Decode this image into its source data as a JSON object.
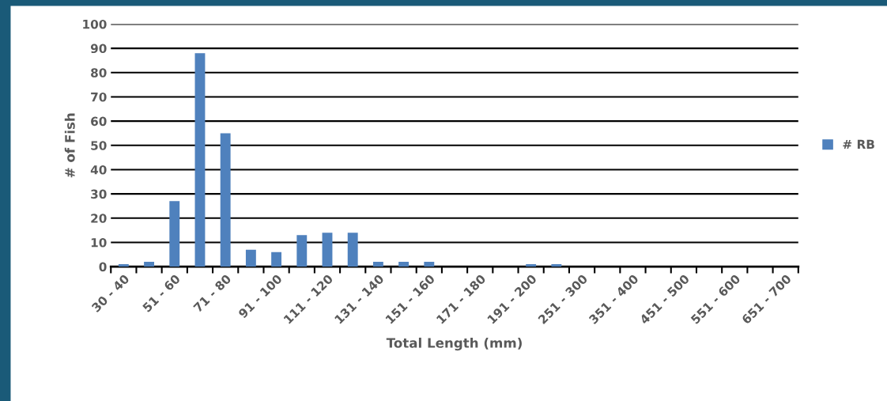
{
  "chart_data": {
    "type": "bar",
    "categories": [
      "30 - 40",
      null,
      "51 - 60",
      null,
      "71 - 80",
      null,
      "91 - 100",
      null,
      "111 - 120",
      null,
      "131 - 140",
      null,
      "151 - 160",
      null,
      "171 - 180",
      null,
      "191 - 200",
      null,
      "251 - 300",
      null,
      "351 - 400",
      null,
      "451 - 500",
      null,
      "551 - 600",
      null,
      "651 - 700"
    ],
    "series": [
      {
        "name": "# RB",
        "color": "#4f81bd",
        "values": [
          1,
          2,
          27,
          88,
          55,
          7,
          6,
          13,
          14,
          14,
          2,
          2,
          2,
          0,
          0,
          0,
          1,
          1,
          0,
          0,
          0,
          0,
          0,
          0,
          0,
          0,
          0
        ]
      }
    ],
    "xlabel": "Total Length (mm)",
    "ylabel": "# of Fish",
    "ylim": [
      0,
      100
    ],
    "yticks": [
      0,
      10,
      20,
      30,
      40,
      50,
      60,
      70,
      80,
      90,
      100
    ],
    "grid": "y",
    "legend": "right"
  }
}
